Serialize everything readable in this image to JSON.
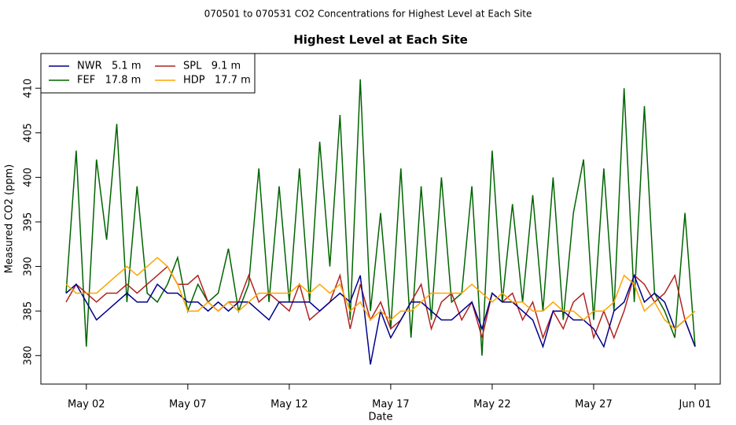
{
  "chart_data": {
    "type": "line",
    "suptitle": "070501  to  070531 CO2 Concentrations for Highest Level at Each Site",
    "title": "Highest Level at Each Site",
    "x_label": "Date",
    "y_label": "Measured CO2 (ppm)",
    "x": [
      1,
      1.5,
      2,
      2.5,
      3,
      3.5,
      4,
      4.5,
      5,
      5.5,
      6,
      6.5,
      7,
      7.5,
      8,
      8.5,
      9,
      9.5,
      10,
      10.5,
      11,
      11.5,
      12,
      12.5,
      13,
      13.5,
      14,
      14.5,
      15,
      15.5,
      16,
      16.5,
      17,
      17.5,
      18,
      18.5,
      19,
      19.5,
      20,
      20.5,
      21,
      21.5,
      22,
      22.5,
      23,
      23.5,
      24,
      24.5,
      25,
      25.5,
      26,
      26.5,
      27,
      27.5,
      28,
      28.5,
      29,
      29.5,
      30,
      30.5,
      31,
      31.5,
      32
    ],
    "series": [
      {
        "name": "NWR   5.1 m",
        "color": "#00008b",
        "values": [
          387,
          388,
          386,
          384,
          385,
          386,
          387,
          386,
          386,
          388,
          387,
          387,
          386,
          386,
          385,
          386,
          385,
          386,
          386,
          385,
          384,
          386,
          386,
          386,
          386,
          385,
          386,
          387,
          386,
          389,
          379,
          385,
          382,
          384,
          386,
          386,
          385,
          384,
          384,
          385,
          386,
          383,
          387,
          386,
          386,
          385,
          384,
          381,
          385,
          385,
          384,
          384,
          383,
          381,
          385,
          386,
          389,
          386,
          387,
          386,
          383,
          384,
          381
        ]
      },
      {
        "name": "FEF   17.8 m",
        "color": "#006400",
        "values": [
          387,
          403,
          381,
          402,
          393,
          406,
          386,
          399,
          387,
          386,
          388,
          391,
          385,
          388,
          386,
          387,
          392,
          385,
          388,
          401,
          386,
          399,
          386,
          401,
          386,
          404,
          390,
          407,
          384,
          411,
          385,
          396,
          383,
          401,
          382,
          399,
          384,
          400,
          386,
          387,
          399,
          380,
          403,
          386,
          397,
          386,
          398,
          385,
          400,
          384,
          396,
          402,
          384,
          401,
          385,
          410,
          386,
          408,
          387,
          385,
          382,
          396,
          381
        ]
      },
      {
        "name": "SPL   9.1 m",
        "color": "#b22222",
        "values": [
          386,
          388,
          387,
          386,
          387,
          387,
          388,
          387,
          388,
          389,
          390,
          388,
          388,
          389,
          386,
          385,
          386,
          386,
          389,
          386,
          387,
          386,
          385,
          388,
          384,
          385,
          386,
          389,
          383,
          388,
          384,
          386,
          383,
          384,
          386,
          388,
          383,
          386,
          387,
          384,
          386,
          382,
          387,
          386,
          387,
          384,
          386,
          382,
          385,
          383,
          386,
          387,
          382,
          385,
          382,
          385,
          389,
          388,
          386,
          387,
          389,
          384,
          381
        ]
      },
      {
        "name": "HDP   17.7 m",
        "color": "#ffa500",
        "values": [
          388,
          387,
          387,
          387,
          388,
          389,
          390,
          389,
          390,
          391,
          390,
          388,
          385,
          385,
          386,
          385,
          386,
          385,
          386,
          387,
          387,
          387,
          387,
          388,
          387,
          388,
          387,
          388,
          385,
          386,
          384,
          385,
          384,
          385,
          385,
          386,
          387,
          387,
          387,
          387,
          388,
          387,
          386,
          387,
          386,
          386,
          385,
          385,
          386,
          385,
          385,
          384,
          385,
          385,
          386,
          389,
          388,
          385,
          386,
          384,
          383,
          384,
          385
        ]
      }
    ],
    "xlim": [
      -0.24,
      33.24
    ],
    "xticks": [
      {
        "value": 2,
        "label": "May 02"
      },
      {
        "value": 7,
        "label": "May 07"
      },
      {
        "value": 12,
        "label": "May 12"
      },
      {
        "value": 17,
        "label": "May 17"
      },
      {
        "value": 22,
        "label": "May 22"
      },
      {
        "value": 27,
        "label": "May 27"
      },
      {
        "value": 32,
        "label": "Jun 01"
      }
    ],
    "ylim": [
      376.8,
      413.9
    ],
    "yticks": [
      380,
      385,
      390,
      395,
      400,
      405,
      410
    ],
    "legend": "topleft"
  }
}
